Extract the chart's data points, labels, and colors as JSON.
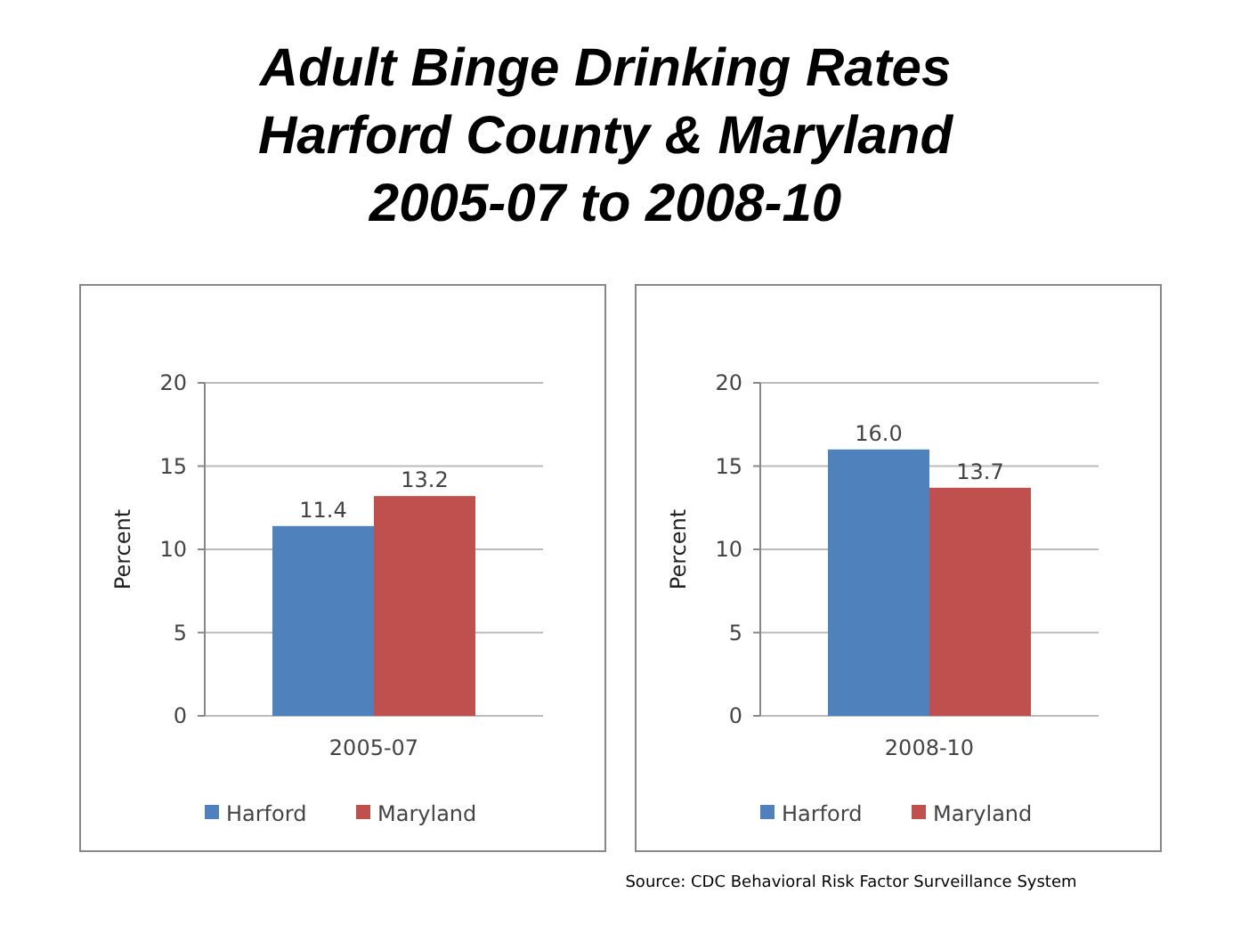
{
  "chart_data": [
    {
      "type": "other",
      "title": "Adult Binge Drinking Rates\nHarford County & Maryland\n2005-07 to 2008-10",
      "annotations": [
        "Source: CDC Behavioral Risk Factor Surveillance System"
      ]
    },
    {
      "type": "bar",
      "categories": [
        "2005-07"
      ],
      "ylabel": "Percent",
      "ylim": [
        0,
        20
      ],
      "yticks": [
        0,
        5,
        10,
        15,
        20
      ],
      "grid": "y",
      "legend": "bottom",
      "series": [
        {
          "name": "Harford",
          "color": "#4f81bd",
          "values": [
            11.4
          ],
          "value_labels": [
            "11.4"
          ]
        },
        {
          "name": "Maryland",
          "color": "#c0504d",
          "values": [
            13.2
          ],
          "value_labels": [
            "13.2"
          ]
        }
      ]
    },
    {
      "type": "bar",
      "categories": [
        "2008-10"
      ],
      "ylabel": "Percent",
      "ylim": [
        0,
        20
      ],
      "yticks": [
        0,
        5,
        10,
        15,
        20
      ],
      "grid": "y",
      "legend": "bottom",
      "series": [
        {
          "name": "Harford",
          "color": "#4f81bd",
          "values": [
            16
          ],
          "value_labels": [
            "16.0"
          ]
        },
        {
          "name": "Maryland",
          "color": "#c0504d",
          "values": [
            13.7
          ],
          "value_labels": [
            "13.7"
          ]
        }
      ]
    }
  ]
}
